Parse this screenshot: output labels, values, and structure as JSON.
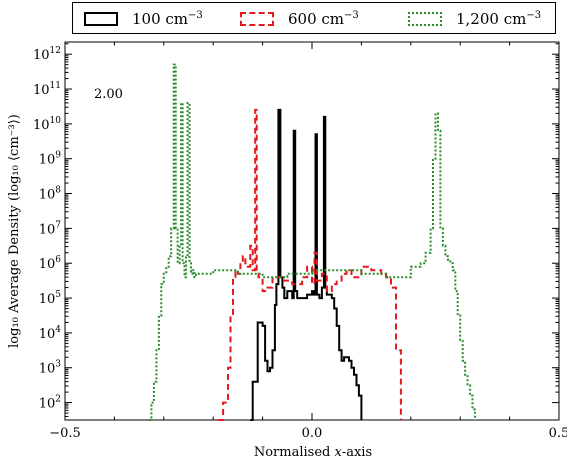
{
  "chart_data": {
    "type": "line",
    "annotation": "2.00",
    "xlabel_main": "Normalised ",
    "xlabel_var": "x",
    "xlabel_suffix": "-axis",
    "ylabel": "log₁₀ Average Density (log₁₀ ⟨cm⁻³⟩)",
    "xlim": [
      -0.5,
      0.5
    ],
    "ylim_log10": [
      1.5,
      12.35
    ],
    "x_ticks": [
      {
        "value": -0.5,
        "label": "−0.5"
      },
      {
        "value": 0.0,
        "label": "0.0"
      },
      {
        "value": 0.5,
        "label": "0.5"
      }
    ],
    "y_ticks": [
      {
        "exp": 2,
        "base": "10",
        "label": "2"
      },
      {
        "exp": 3,
        "base": "10",
        "label": "3"
      },
      {
        "exp": 4,
        "base": "10",
        "label": "4"
      },
      {
        "exp": 5,
        "base": "10",
        "label": "5"
      },
      {
        "exp": 6,
        "base": "10",
        "label": "6"
      },
      {
        "exp": 7,
        "base": "10",
        "label": "7"
      },
      {
        "exp": 8,
        "base": "10",
        "label": "8"
      },
      {
        "exp": 9,
        "base": "10",
        "label": "9"
      },
      {
        "exp": 10,
        "base": "10",
        "label": "10"
      },
      {
        "exp": 11,
        "base": "10",
        "label": "11"
      },
      {
        "exp": 12,
        "base": "10",
        "label": "12"
      }
    ],
    "legend_position": "top (outside, above plot)",
    "legend": [
      {
        "label": "100 cm",
        "unit_exp": "−3",
        "color": "#000000",
        "style": "solid"
      },
      {
        "label": "600 cm",
        "unit_exp": "−3",
        "color": "#e31a1c",
        "style": "dashed"
      },
      {
        "label": "1,200 cm",
        "unit_exp": "−3",
        "color": "#2a8c2a",
        "style": "dotted"
      }
    ],
    "series": [
      {
        "name": "100 cm−3",
        "color": "#000000",
        "dash": "",
        "x": [
          -0.125,
          -0.12,
          -0.11,
          -0.1,
          -0.095,
          -0.09,
          -0.085,
          -0.08,
          -0.075,
          -0.072,
          -0.068,
          -0.064,
          -0.06,
          -0.056,
          -0.05,
          -0.045,
          -0.04,
          -0.037,
          -0.034,
          -0.03,
          -0.02,
          -0.01,
          0.0,
          0.004,
          0.007,
          0.01,
          0.015,
          0.02,
          0.024,
          0.027,
          0.03,
          0.035,
          0.04,
          0.045,
          0.05,
          0.055,
          0.06,
          0.065,
          0.07,
          0.075,
          0.08,
          0.085,
          0.09,
          0.095,
          0.1
        ],
        "y": [
          1.5,
          2.6,
          4.3,
          4.2,
          3.2,
          2.9,
          3.0,
          3.5,
          4.8,
          5.4,
          10.4,
          5.6,
          5.3,
          5.0,
          5.2,
          5.2,
          5.0,
          9.8,
          5.2,
          5.0,
          5.0,
          5.1,
          5.2,
          5.1,
          9.7,
          5.1,
          5.0,
          5.3,
          10.2,
          5.3,
          5.1,
          5.1,
          5.0,
          4.7,
          4.2,
          3.5,
          3.2,
          3.3,
          3.3,
          3.2,
          3.0,
          2.8,
          2.5,
          2.2,
          1.5
        ]
      },
      {
        "name": "600 cm−3",
        "color": "#e31a1c",
        "dash": "6,4",
        "x": [
          -0.19,
          -0.18,
          -0.17,
          -0.165,
          -0.16,
          -0.155,
          -0.15,
          -0.145,
          -0.14,
          -0.135,
          -0.13,
          -0.125,
          -0.12,
          -0.115,
          -0.112,
          -0.108,
          -0.1,
          -0.09,
          -0.08,
          -0.06,
          -0.04,
          -0.02,
          -0.01,
          0.0,
          0.005,
          0.01,
          0.02,
          0.03,
          0.04,
          0.05,
          0.06,
          0.07,
          0.08,
          0.1,
          0.12,
          0.14,
          0.15,
          0.16,
          0.17,
          0.18
        ],
        "y": [
          1.5,
          2.0,
          3.0,
          4.5,
          5.6,
          5.8,
          5.7,
          6.0,
          6.2,
          6.0,
          5.9,
          6.5,
          5.8,
          10.4,
          5.7,
          5.6,
          5.2,
          5.3,
          5.6,
          5.5,
          5.4,
          5.6,
          5.9,
          5.4,
          6.3,
          5.5,
          5.7,
          5.2,
          5.4,
          5.5,
          5.7,
          5.8,
          5.6,
          5.9,
          5.8,
          5.7,
          5.6,
          5.3,
          3.5,
          1.5
        ]
      },
      {
        "name": "1,200 cm−3",
        "color": "#2a8c2a",
        "dash": "2,2",
        "x": [
          -0.33,
          -0.325,
          -0.32,
          -0.315,
          -0.31,
          -0.305,
          -0.3,
          -0.295,
          -0.29,
          -0.285,
          -0.28,
          -0.276,
          -0.272,
          -0.268,
          -0.265,
          -0.262,
          -0.258,
          -0.255,
          -0.252,
          -0.248,
          -0.245,
          -0.242,
          -0.238,
          -0.235,
          -0.2,
          -0.15,
          -0.1,
          -0.05,
          0.0,
          0.05,
          0.1,
          0.15,
          0.2,
          0.22,
          0.23,
          0.24,
          0.245,
          0.25,
          0.255,
          0.26,
          0.265,
          0.27,
          0.275,
          0.28,
          0.285,
          0.29,
          0.295,
          0.3,
          0.305,
          0.31,
          0.315,
          0.32,
          0.325,
          0.33
        ],
        "y": [
          1.5,
          2.0,
          2.6,
          3.5,
          4.5,
          5.4,
          5.7,
          5.9,
          6.2,
          7.0,
          11.7,
          7.0,
          6.0,
          6.5,
          10.6,
          6.0,
          5.6,
          6.2,
          10.6,
          6.0,
          5.7,
          5.8,
          5.6,
          5.7,
          5.8,
          5.7,
          5.6,
          5.7,
          5.8,
          5.8,
          5.7,
          5.6,
          5.9,
          6.0,
          6.3,
          7.0,
          9.0,
          10.3,
          9.8,
          7.0,
          6.5,
          6.2,
          6.1,
          6.0,
          5.8,
          5.2,
          4.5,
          3.8,
          3.2,
          2.8,
          2.5,
          2.2,
          1.8,
          1.5
        ]
      }
    ]
  }
}
